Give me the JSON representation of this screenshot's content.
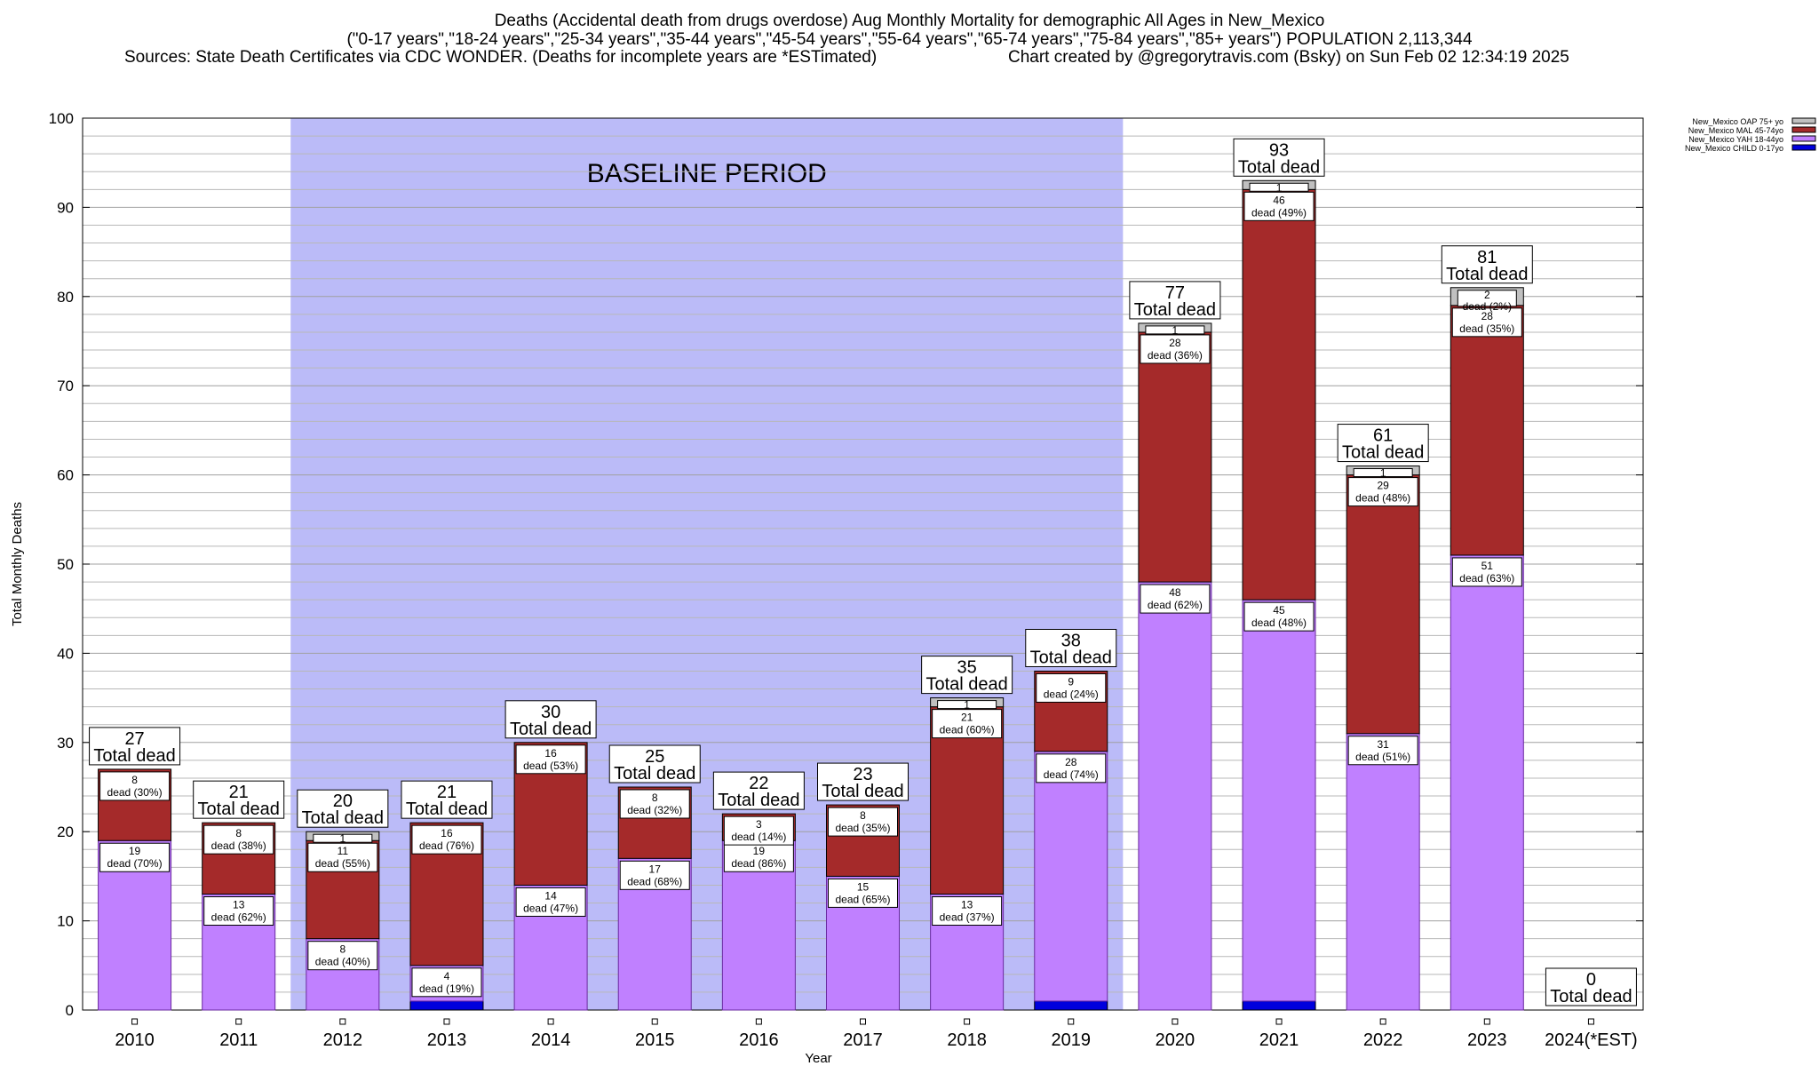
{
  "header": {
    "title_line1": "Deaths (Accidental death from drugs overdose) Aug Monthly Mortality for demographic All Ages in New_Mexico",
    "title_line2": "(\"0-17 years\",\"18-24 years\",\"25-34 years\",\"35-44 years\",\"45-54 years\",\"55-64 years\",\"65-74 years\",\"75-84 years\",\"85+ years\") POPULATION 2,113,344",
    "sources": "Sources: State Death Certificates via CDC WONDER. (Deaths for incomplete years are *ESTimated)",
    "credit": "Chart created by @gregorytravis.com (Bsky) on Sun Feb 02 12:34:19 2025"
  },
  "colors": {
    "oap": "#c0c0c0",
    "mal": "#a52a2a",
    "yah": "#c080ff",
    "child": "#0000dd",
    "baseline": "#bbbbf8"
  },
  "chart_data": {
    "type": "bar",
    "stacked": true,
    "title": "Deaths (Accidental death from drugs overdose) Aug Monthly Mortality for demographic All Ages in New_Mexico",
    "xlabel": "Year",
    "ylabel": "Total Monthly Deaths",
    "ylim": [
      0,
      100
    ],
    "yticks": [
      0,
      10,
      20,
      30,
      40,
      50,
      60,
      70,
      80,
      90,
      100
    ],
    "baseline_label": "BASELINE PERIOD",
    "baseline_range": [
      "2012",
      "2019"
    ],
    "total_label": "Total dead",
    "dead_word": "dead",
    "categories": [
      "2010",
      "2011",
      "2012",
      "2013",
      "2014",
      "2015",
      "2016",
      "2017",
      "2018",
      "2019",
      "2020",
      "2021",
      "2022",
      "2023",
      "2024(*EST)"
    ],
    "totals": [
      27,
      21,
      20,
      21,
      30,
      25,
      22,
      23,
      35,
      38,
      77,
      93,
      61,
      81,
      0
    ],
    "legend_position": "top-right",
    "series": [
      {
        "name": "New_Mexico CHILD 0-17yo",
        "key": "child",
        "values": [
          0,
          0,
          0,
          1,
          0,
          0,
          0,
          0,
          0,
          1,
          0,
          1,
          0,
          0,
          0
        ]
      },
      {
        "name": "New_Mexico YAH 18-44yo",
        "key": "yah",
        "values": [
          19,
          13,
          8,
          4,
          14,
          17,
          19,
          15,
          13,
          28,
          48,
          45,
          31,
          51,
          0
        ],
        "pct": [
          "70%",
          "62%",
          "40%",
          "19%",
          "47%",
          "68%",
          "86%",
          "65%",
          "37%",
          "74%",
          "62%",
          "48%",
          "51%",
          "63%",
          ""
        ]
      },
      {
        "name": "New_Mexico MAL 45-74yo",
        "key": "mal",
        "values": [
          8,
          8,
          11,
          16,
          16,
          8,
          3,
          8,
          21,
          9,
          28,
          46,
          29,
          28,
          0
        ],
        "pct": [
          "30%",
          "38%",
          "55%",
          "76%",
          "53%",
          "32%",
          "14%",
          "35%",
          "60%",
          "24%",
          "36%",
          "49%",
          "48%",
          "35%",
          ""
        ]
      },
      {
        "name": "New_Mexico OAP 75+ yo",
        "key": "oap",
        "values": [
          0,
          0,
          1,
          0,
          0,
          0,
          0,
          0,
          1,
          0,
          1,
          1,
          1,
          2,
          0
        ],
        "pct": [
          "",
          "",
          "",
          "",
          "",
          "",
          "",
          "",
          "",
          "",
          "",
          "",
          "",
          "2%",
          ""
        ]
      }
    ]
  }
}
